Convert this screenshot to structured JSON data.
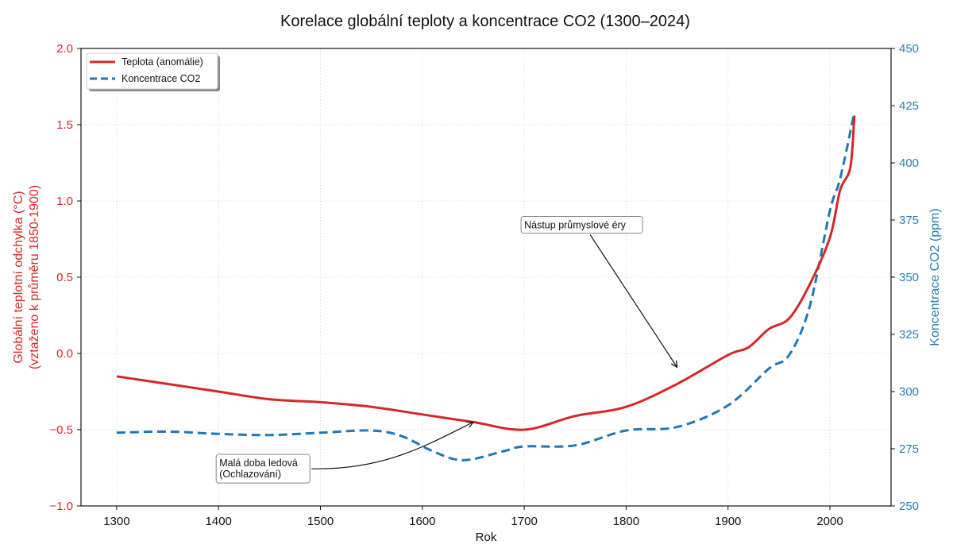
{
  "chart_data": {
    "type": "line",
    "title": "Korelace globální teploty a koncentrace CO2 (1300–2024)",
    "xlabel": "Rok",
    "ylabel_left": [
      "Globální teplotní odchylka (°C)",
      "(vztaženo k průměru 1850-1900)"
    ],
    "ylabel_right": "Koncentrace CO2 (ppm)",
    "xlim": [
      1265,
      2060
    ],
    "ylim_left": [
      -1.0,
      2.0
    ],
    "ylim_right": [
      250,
      450
    ],
    "x_ticks": [
      "1300",
      "1400",
      "1500",
      "1600",
      "1700",
      "1800",
      "1900",
      "2000"
    ],
    "y_ticks_left": [
      "−1.0",
      "−0.5",
      "0.0",
      "0.5",
      "1.0",
      "1.5",
      "2.0"
    ],
    "y_ticks_right": [
      "250",
      "275",
      "300",
      "325",
      "350",
      "375",
      "400",
      "425",
      "450"
    ],
    "grid": true,
    "legend_position": "top-left",
    "colors": {
      "temperature": "#d62728",
      "co2": "#1f77b4",
      "left_axis": "#d62728",
      "right_axis": "#2a7db5"
    },
    "series": [
      {
        "name": "Teplota (anomálie)",
        "axis": "left",
        "style": "solid",
        "x": [
          1300,
          1350,
          1400,
          1450,
          1500,
          1550,
          1600,
          1650,
          1700,
          1750,
          1800,
          1850,
          1900,
          1920,
          1940,
          1960,
          1980,
          2000,
          2010,
          2020,
          2024
        ],
        "values": [
          -0.15,
          -0.2,
          -0.25,
          -0.3,
          -0.32,
          -0.35,
          -0.4,
          -0.45,
          -0.5,
          -0.41,
          -0.35,
          -0.2,
          -0.01,
          0.04,
          0.16,
          0.23,
          0.45,
          0.76,
          1.07,
          1.22,
          1.56
        ]
      },
      {
        "name": "Koncentrace CO2",
        "axis": "right",
        "style": "dashed",
        "x": [
          1300,
          1350,
          1400,
          1450,
          1500,
          1550,
          1580,
          1610,
          1640,
          1680,
          1700,
          1750,
          1800,
          1850,
          1900,
          1940,
          1960,
          1980,
          2000,
          2010,
          2024
        ],
        "values": [
          282,
          282.5,
          281.5,
          281,
          282,
          283,
          280.5,
          274,
          270,
          274,
          276,
          276.5,
          283,
          284.5,
          294,
          310,
          316,
          337,
          379,
          393,
          422
        ]
      }
    ],
    "annotations": [
      {
        "lines": [
          "Malá doba ledová",
          "(Ochlazování)"
        ],
        "text_x": 1400,
        "text_y": -0.74,
        "target_x": 1650,
        "target_y": -0.45
      },
      {
        "lines": [
          "Nástup průmyslové éry"
        ],
        "text_x": 1700,
        "text_y": 0.82,
        "target_x": 1850,
        "target_y": -0.09
      }
    ]
  }
}
